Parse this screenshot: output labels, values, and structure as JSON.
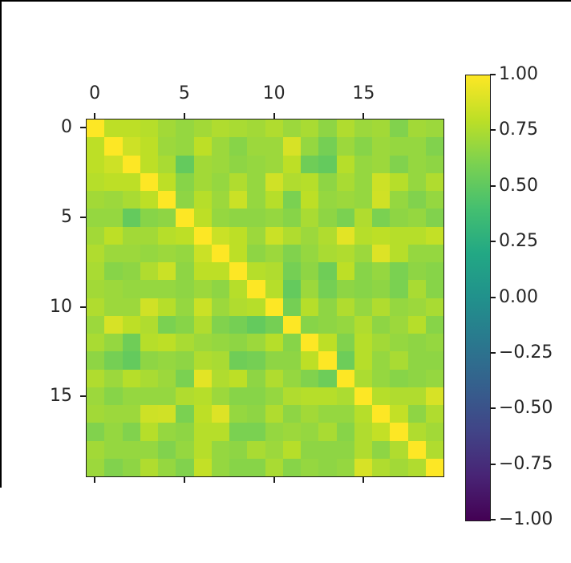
{
  "figure": {
    "kind": "matplotlib-matshow-correlation-matrix",
    "background": "#ffffff",
    "window_edge_color": "#000000",
    "spine_color": "#1a1a1a",
    "tick_label_color": "#262626"
  },
  "chart_data": {
    "type": "heatmap",
    "title": "",
    "xlabel": "",
    "ylabel": "",
    "n_rows": 20,
    "n_cols": 20,
    "x_ticks": {
      "positions": [
        0,
        5,
        10,
        15
      ],
      "labels": [
        "0",
        "5",
        "10",
        "15"
      ],
      "side": "top"
    },
    "y_ticks": {
      "positions": [
        0,
        5,
        10,
        15
      ],
      "labels": [
        "0",
        "5",
        "10",
        "15"
      ],
      "side": "left"
    },
    "colormap": {
      "name": "viridis",
      "stops": [
        "#440154",
        "#482475",
        "#414487",
        "#355f8d",
        "#2a788e",
        "#21918c",
        "#22a884",
        "#44bf70",
        "#7ad151",
        "#bddf26",
        "#fde725"
      ]
    },
    "colorbar": {
      "vmin": -1.0,
      "vmax": 1.0,
      "tick_values": [
        1.0,
        0.75,
        0.5,
        0.25,
        0.0,
        -0.25,
        -0.5,
        -0.75,
        -1.0
      ],
      "tick_labels": [
        "1.00",
        "0.75",
        "0.50",
        "0.25",
        "0.00",
        "−0.25",
        "−0.50",
        "−0.75",
        "−1.00"
      ],
      "position": "right"
    },
    "matrix": [
      [
        1.0,
        0.8,
        0.8,
        0.78,
        0.72,
        0.68,
        0.72,
        0.76,
        0.74,
        0.72,
        0.76,
        0.7,
        0.74,
        0.66,
        0.76,
        0.7,
        0.72,
        0.62,
        0.72,
        0.7
      ],
      [
        0.8,
        1.0,
        0.85,
        0.8,
        0.7,
        0.68,
        0.8,
        0.7,
        0.64,
        0.7,
        0.7,
        0.88,
        0.68,
        0.58,
        0.7,
        0.64,
        0.7,
        0.68,
        0.68,
        0.62
      ],
      [
        0.8,
        0.85,
        1.0,
        0.8,
        0.74,
        0.52,
        0.72,
        0.7,
        0.66,
        0.68,
        0.7,
        0.8,
        0.56,
        0.52,
        0.78,
        0.68,
        0.7,
        0.62,
        0.68,
        0.66
      ],
      [
        0.78,
        0.8,
        0.8,
        1.0,
        0.8,
        0.64,
        0.72,
        0.68,
        0.76,
        0.68,
        0.86,
        0.76,
        0.78,
        0.66,
        0.74,
        0.68,
        0.85,
        0.78,
        0.68,
        0.76
      ],
      [
        0.72,
        0.7,
        0.74,
        0.8,
        1.0,
        0.66,
        0.78,
        0.7,
        0.84,
        0.68,
        0.78,
        0.6,
        0.8,
        0.68,
        0.7,
        0.68,
        0.86,
        0.68,
        0.62,
        0.68
      ],
      [
        0.68,
        0.68,
        0.52,
        0.64,
        0.66,
        1.0,
        0.8,
        0.68,
        0.66,
        0.66,
        0.68,
        0.64,
        0.74,
        0.66,
        0.6,
        0.76,
        0.6,
        0.66,
        0.68,
        0.62
      ],
      [
        0.72,
        0.8,
        0.72,
        0.72,
        0.78,
        0.8,
        1.0,
        0.84,
        0.8,
        0.7,
        0.84,
        0.76,
        0.7,
        0.76,
        0.92,
        0.78,
        0.8,
        0.78,
        0.78,
        0.82
      ],
      [
        0.76,
        0.7,
        0.7,
        0.68,
        0.7,
        0.68,
        0.84,
        1.0,
        0.8,
        0.66,
        0.7,
        0.62,
        0.68,
        0.74,
        0.76,
        0.7,
        0.9,
        0.78,
        0.68,
        0.68
      ],
      [
        0.74,
        0.64,
        0.66,
        0.76,
        0.84,
        0.66,
        0.8,
        0.8,
        1.0,
        0.78,
        0.76,
        0.58,
        0.66,
        0.56,
        0.8,
        0.64,
        0.68,
        0.6,
        0.66,
        0.64
      ],
      [
        0.72,
        0.7,
        0.68,
        0.68,
        0.68,
        0.66,
        0.7,
        0.66,
        0.78,
        1.0,
        0.78,
        0.52,
        0.7,
        0.58,
        0.66,
        0.64,
        0.66,
        0.6,
        0.74,
        0.64
      ],
      [
        0.76,
        0.7,
        0.7,
        0.86,
        0.78,
        0.68,
        0.84,
        0.7,
        0.76,
        0.78,
        1.0,
        0.58,
        0.78,
        0.66,
        0.76,
        0.68,
        0.76,
        0.68,
        0.7,
        0.74
      ],
      [
        0.7,
        0.88,
        0.8,
        0.76,
        0.6,
        0.64,
        0.76,
        0.62,
        0.58,
        0.52,
        0.58,
        1.0,
        0.64,
        0.66,
        0.68,
        0.76,
        0.66,
        0.7,
        0.78,
        0.64
      ],
      [
        0.74,
        0.68,
        0.56,
        0.78,
        0.8,
        0.74,
        0.7,
        0.68,
        0.66,
        0.7,
        0.78,
        0.64,
        1.0,
        0.8,
        0.62,
        0.78,
        0.72,
        0.68,
        0.66,
        0.68
      ],
      [
        0.66,
        0.58,
        0.52,
        0.66,
        0.68,
        0.66,
        0.76,
        0.74,
        0.56,
        0.58,
        0.66,
        0.66,
        0.8,
        1.0,
        0.55,
        0.78,
        0.68,
        0.74,
        0.66,
        0.66
      ],
      [
        0.76,
        0.7,
        0.78,
        0.74,
        0.7,
        0.6,
        0.92,
        0.76,
        0.8,
        0.66,
        0.76,
        0.68,
        0.62,
        0.55,
        1.0,
        0.75,
        0.68,
        0.64,
        0.66,
        0.68
      ],
      [
        0.7,
        0.64,
        0.68,
        0.68,
        0.68,
        0.76,
        0.78,
        0.7,
        0.64,
        0.64,
        0.68,
        0.76,
        0.78,
        0.78,
        0.75,
        1.0,
        0.78,
        0.76,
        0.76,
        0.88
      ],
      [
        0.72,
        0.7,
        0.7,
        0.85,
        0.86,
        0.6,
        0.8,
        0.9,
        0.68,
        0.66,
        0.76,
        0.66,
        0.72,
        0.68,
        0.68,
        0.78,
        1.0,
        0.82,
        0.66,
        0.76
      ],
      [
        0.62,
        0.68,
        0.62,
        0.78,
        0.68,
        0.66,
        0.78,
        0.78,
        0.6,
        0.6,
        0.68,
        0.7,
        0.68,
        0.74,
        0.64,
        0.76,
        0.82,
        1.0,
        0.76,
        0.72
      ],
      [
        0.72,
        0.68,
        0.68,
        0.68,
        0.62,
        0.68,
        0.78,
        0.68,
        0.66,
        0.74,
        0.7,
        0.78,
        0.66,
        0.66,
        0.66,
        0.76,
        0.66,
        0.76,
        1.0,
        0.76
      ],
      [
        0.7,
        0.62,
        0.66,
        0.76,
        0.68,
        0.62,
        0.82,
        0.68,
        0.64,
        0.64,
        0.74,
        0.64,
        0.68,
        0.66,
        0.68,
        0.88,
        0.76,
        0.72,
        0.76,
        1.0
      ]
    ]
  }
}
